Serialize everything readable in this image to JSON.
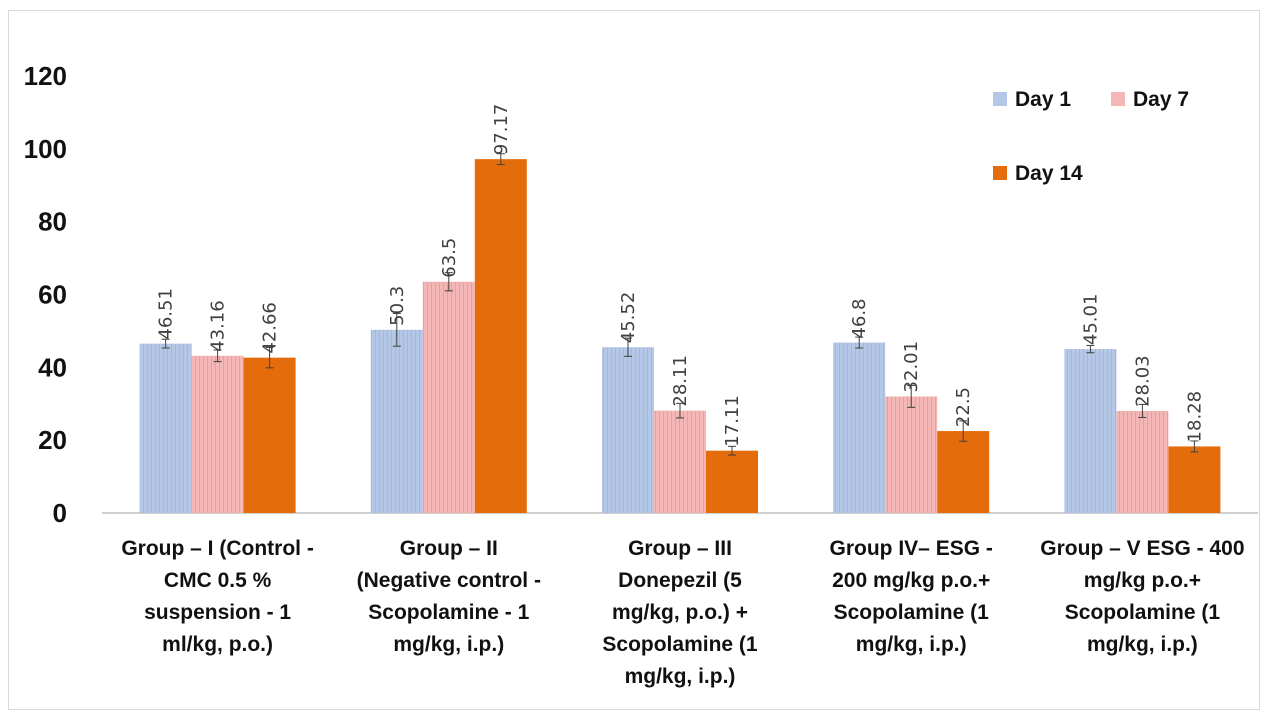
{
  "chart_data": {
    "type": "bar",
    "title": "",
    "xlabel": "",
    "ylabel": "",
    "ylim": [
      0,
      120
    ],
    "yticks": [
      0,
      20,
      40,
      60,
      80,
      100,
      120
    ],
    "grid": false,
    "legend_position": "top-right",
    "categories": [
      "Group – I  (Control - CMC 0.5 % suspension - 1 ml/kg, p.o.)",
      "Group – II (Negative control - Scopolamine - 1 mg/kg, i.p.)",
      "Group – III Donepezil (5 mg/kg, p.o.) + Scopolamine (1 mg/kg, i.p.)",
      "Group IV– ESG - 200 mg/kg p.o.+ Scopolamine (1 mg/kg, i.p.)",
      "Group – V ESG - 400 mg/kg p.o.+ Scopolamine (1 mg/kg, i.p.)"
    ],
    "category_lines": [
      [
        "Group – I  (Control -",
        "CMC 0.5 %",
        "suspension - 1",
        "ml/kg, p.o.)"
      ],
      [
        "Group – II",
        "(Negative control -",
        "Scopolamine - 1",
        "mg/kg, i.p.)"
      ],
      [
        "Group – III",
        "Donepezil (5",
        "mg/kg, p.o.) +",
        "Scopolamine (1",
        "mg/kg, i.p.)"
      ],
      [
        "Group IV– ESG -",
        "200 mg/kg p.o.+",
        "Scopolamine (1",
        "mg/kg, i.p.)"
      ],
      [
        "Group – V ESG - 400",
        "mg/kg p.o.+",
        "Scopolamine (1",
        "mg/kg, i.p.)"
      ]
    ],
    "series": [
      {
        "name": "Day 1",
        "color": "#b4c7e7",
        "values": [
          46.51,
          50.3,
          45.52,
          46.8,
          45.01
        ],
        "labels": [
          "46.51",
          "50.3",
          "45.52",
          "46.8",
          "45.01"
        ],
        "errors": [
          1.2,
          4.5,
          2.5,
          1.5,
          1.0
        ]
      },
      {
        "name": "Day 7",
        "color": "#f4b7b5",
        "values": [
          43.16,
          63.5,
          28.11,
          32.01,
          28.03
        ],
        "labels": [
          "43.16",
          "63.5",
          "28.11",
          "32.01",
          "28.03"
        ],
        "errors": [
          1.6,
          2.5,
          2.0,
          3.0,
          1.8
        ]
      },
      {
        "name": "Day 14",
        "color": "#e46c0a",
        "values": [
          42.66,
          97.17,
          17.11,
          22.5,
          18.28
        ],
        "labels": [
          "42.66",
          "97.17",
          "17.11",
          "22.5",
          "18.28"
        ],
        "errors": [
          2.8,
          1.5,
          1.2,
          2.8,
          1.5
        ]
      }
    ]
  }
}
